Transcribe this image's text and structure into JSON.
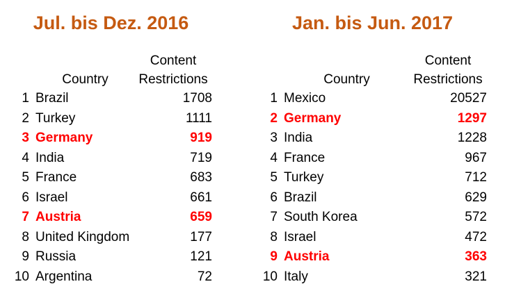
{
  "colors": {
    "background": "#FFFFFF",
    "title_accent": "#C55A11",
    "highlight": "#FF0000",
    "text": "#000000"
  },
  "chart_data": [
    {
      "type": "table",
      "title": "Jul. bis Dez. 2016",
      "columns": [
        "Rank",
        "Country",
        "Content Restrictions"
      ],
      "header_display": {
        "country": "Country",
        "value_line1": "Content",
        "value_line2": "Restrictions"
      },
      "rows": [
        {
          "rank": "1",
          "country": "Brazil",
          "value": "1708",
          "highlight": false
        },
        {
          "rank": "2",
          "country": "Turkey",
          "value": "1111",
          "highlight": false
        },
        {
          "rank": "3",
          "country": "Germany",
          "value": "919",
          "highlight": true
        },
        {
          "rank": "4",
          "country": "India",
          "value": "719",
          "highlight": false
        },
        {
          "rank": "5",
          "country": "France",
          "value": "683",
          "highlight": false
        },
        {
          "rank": "6",
          "country": "Israel",
          "value": "661",
          "highlight": false
        },
        {
          "rank": "7",
          "country": "Austria",
          "value": "659",
          "highlight": true
        },
        {
          "rank": "8",
          "country": "United Kingdom",
          "value": "177",
          "highlight": false
        },
        {
          "rank": "9",
          "country": "Russia",
          "value": "121",
          "highlight": false
        },
        {
          "rank": "10",
          "country": "Argentina",
          "value": "72",
          "highlight": false
        }
      ]
    },
    {
      "type": "table",
      "title": "Jan. bis Jun. 2017",
      "columns": [
        "Rank",
        "Country",
        "Content Restrictions"
      ],
      "header_display": {
        "country": "Country",
        "value_line1": "Content",
        "value_line2": "Restrictions"
      },
      "rows": [
        {
          "rank": "1",
          "country": "Mexico",
          "value": "20527",
          "highlight": false
        },
        {
          "rank": "2",
          "country": "Germany",
          "value": "1297",
          "highlight": true
        },
        {
          "rank": "3",
          "country": "India",
          "value": "1228",
          "highlight": false
        },
        {
          "rank": "4",
          "country": "France",
          "value": "967",
          "highlight": false
        },
        {
          "rank": "5",
          "country": "Turkey",
          "value": "712",
          "highlight": false
        },
        {
          "rank": "6",
          "country": "Brazil",
          "value": "629",
          "highlight": false
        },
        {
          "rank": "7",
          "country": "South Korea",
          "value": "572",
          "highlight": false
        },
        {
          "rank": "8",
          "country": "Israel",
          "value": "472",
          "highlight": false
        },
        {
          "rank": "9",
          "country": "Austria",
          "value": "363",
          "highlight": true
        },
        {
          "rank": "10",
          "country": "Italy",
          "value": "321",
          "highlight": false
        }
      ]
    }
  ]
}
